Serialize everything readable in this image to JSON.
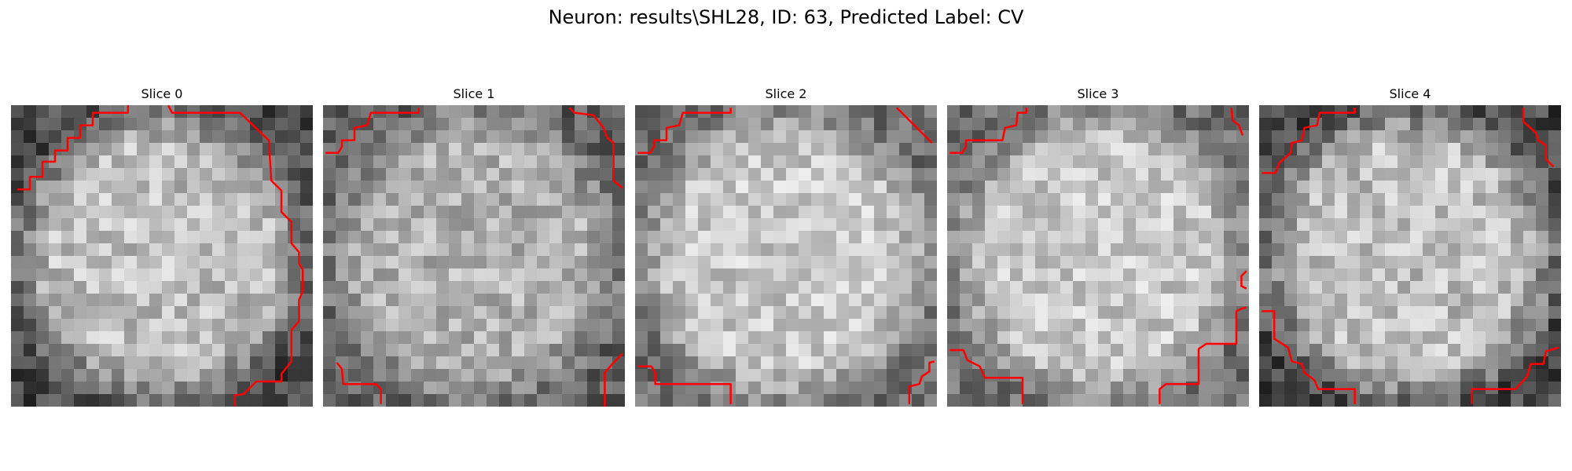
{
  "figure": {
    "title": "Neuron: results\\SHL28, ID: 63, Predicted Label: CV",
    "contour_color": "#ff0000",
    "panels": [
      {
        "title": "Slice 0",
        "tone": "dark-rim"
      },
      {
        "title": "Slice 1",
        "tone": "mid"
      },
      {
        "title": "Slice 2",
        "tone": "bright"
      },
      {
        "title": "Slice 3",
        "tone": "bright"
      },
      {
        "title": "Slice 4",
        "tone": "dark-rim"
      }
    ]
  }
}
